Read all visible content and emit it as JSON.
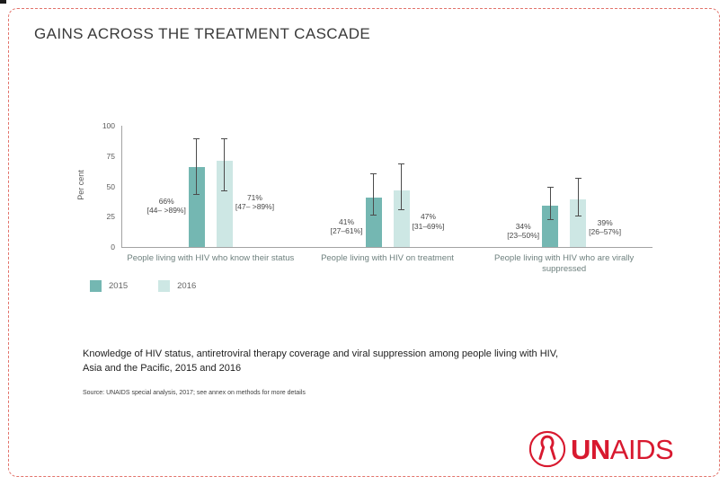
{
  "slide": {
    "title": "GAINS ACROSS THE TREATMENT CASCADE",
    "caption_line1": "Knowledge of HIV status, antiretroviral therapy coverage and viral suppression among people living with HIV,",
    "caption_line2": "Asia and the Pacific, 2015 and 2016",
    "source": "Source: UNAIDS special analysis, 2017; see annex on methods for more details",
    "logo_un": "UN",
    "logo_aids": "AIDS"
  },
  "chart_data": {
    "type": "bar",
    "title": "",
    "xlabel": "",
    "ylabel": "Per cent",
    "ylim": [
      0,
      100
    ],
    "yticks": [
      0,
      25,
      50,
      75,
      100
    ],
    "grid": false,
    "legend_position": "bottom-left",
    "categories": [
      "People living with HIV who know their status",
      "People living with HIV on treatment",
      "People living with HIV who are virally suppressed"
    ],
    "series": [
      {
        "name": "2015",
        "color": "#74b7b2",
        "values": [
          66,
          41,
          34
        ],
        "ci_low": [
          44,
          27,
          23
        ],
        "ci_high": [
          90,
          61,
          50
        ],
        "value_labels": [
          "66%",
          "41%",
          "34%"
        ],
        "ci_labels": [
          "[44– >89%]",
          "[27–61%]",
          "[23–50%]"
        ]
      },
      {
        "name": "2016",
        "color": "#cde7e4",
        "values": [
          71,
          47,
          39
        ],
        "ci_low": [
          47,
          31,
          26
        ],
        "ci_high": [
          90,
          69,
          57
        ],
        "value_labels": [
          "71%",
          "47%",
          "39%"
        ],
        "ci_labels": [
          "[47– >89%]",
          "[31–69%]",
          "[26–57%]"
        ]
      }
    ]
  }
}
